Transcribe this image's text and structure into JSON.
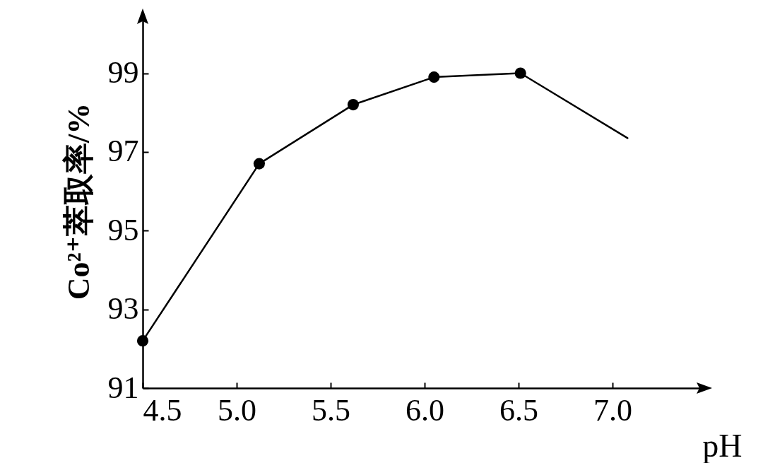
{
  "chart_data": {
    "type": "line",
    "xlabel": "pH",
    "ylabel": "Co²⁺萃取率/%",
    "xlim": [
      4.5,
      7.5
    ],
    "ylim": [
      91,
      100.5
    ],
    "xticks": [
      4.5,
      {
        "value": 5,
        "label": "5.0"
      },
      5.5,
      {
        "value": 6,
        "label": "6.0"
      },
      6.5,
      {
        "value": 7,
        "label": "7.0"
      }
    ],
    "yticks": [
      91,
      93,
      95,
      97,
      99
    ],
    "series": [
      {
        "color": "#000000",
        "x": [
          4.5,
          5.12,
          5.62,
          6.05,
          6.51,
          7.08
        ],
        "values": [
          92.2,
          96.7,
          98.2,
          98.9,
          99.0,
          97.35
        ]
      },
      {
        "type": "scatter",
        "marker": "circle",
        "color": "#000000",
        "x": [
          4.5,
          5.12,
          5.62,
          6.05,
          6.51
        ],
        "values": [
          92.2,
          96.7,
          98.2,
          98.9,
          99.0
        ]
      }
    ]
  }
}
